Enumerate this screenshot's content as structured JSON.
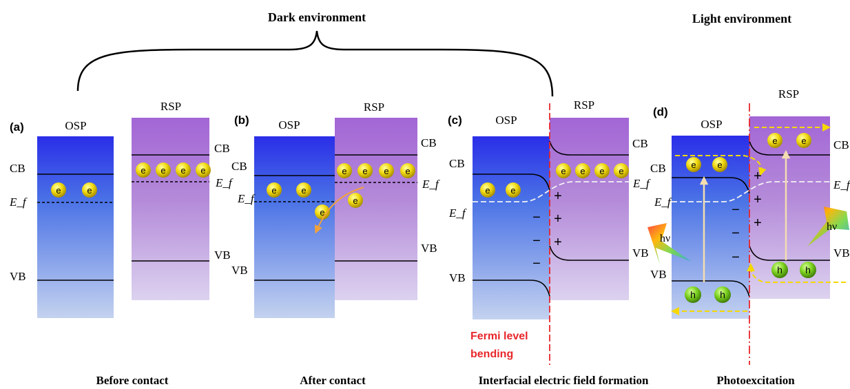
{
  "headings": {
    "dark": "Dark environment",
    "light": "Light environment"
  },
  "panels": {
    "a": {
      "label": "(a)",
      "osp": "OSP",
      "rsp": "RSP",
      "osp_cb": "CB",
      "osp_ef": "E_f",
      "osp_vb": "VB",
      "rsp_cb": "CB",
      "rsp_ef": "E_f",
      "rsp_vb": "VB",
      "caption": "Before contact"
    },
    "b": {
      "label": "(b)",
      "osp": "OSP",
      "rsp": "RSP",
      "osp_cb": "CB",
      "osp_ef": "E_f",
      "osp_vb": "VB",
      "rsp_cb": "CB",
      "rsp_ef": "E_f",
      "rsp_vb": "VB",
      "caption": "After contact"
    },
    "c": {
      "label": "(c)",
      "osp": "OSP",
      "rsp": "RSP",
      "osp_cb": "CB",
      "osp_ef": "E_f",
      "osp_vb": "VB",
      "rsp_cb": "CB",
      "rsp_ef": "E_f",
      "rsp_vb": "VB",
      "caption": "Interfacial electric field formation",
      "note_line1": "Fermi level",
      "note_line2": "bending"
    },
    "d": {
      "label": "(d)",
      "osp": "OSP",
      "rsp": "RSP",
      "osp_cb": "CB",
      "osp_ef": "E_f",
      "osp_vb": "VB",
      "rsp_cb": "CB",
      "rsp_ef": "E_f",
      "rsp_vb": "VB",
      "caption": "Photoexcitation",
      "photon": "hν"
    }
  },
  "symbols": {
    "electron": "e",
    "hole": "h",
    "plus": "+",
    "minus": "−"
  },
  "colors": {
    "osp_top": "#2a2ee8",
    "rsp_top": "#a366d6",
    "electron": "#e8d000",
    "hole": "#7ed321",
    "interface": "#e8262a",
    "note": "#e8262a",
    "arrow_orange": "#f2a23a",
    "arrow_yellow": "#f5d800",
    "excitation": "#f3ddb0"
  }
}
